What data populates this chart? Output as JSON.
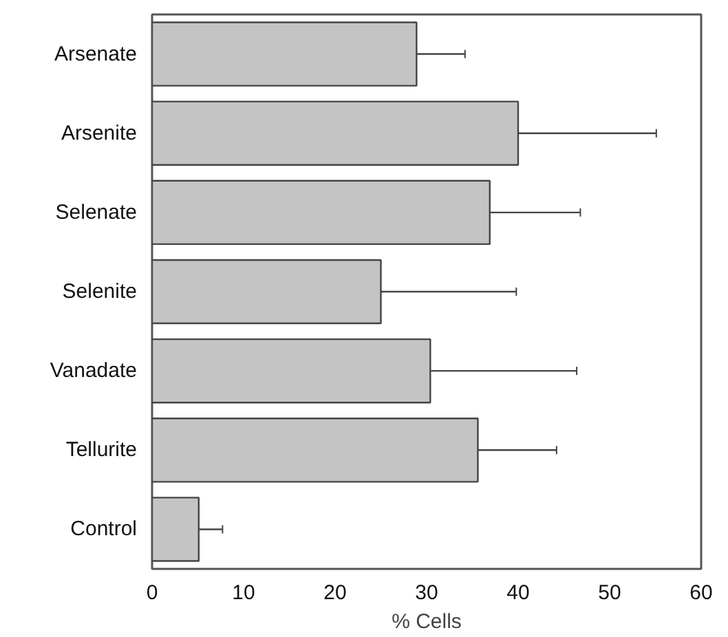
{
  "chart_data": {
    "type": "bar",
    "orientation": "horizontal",
    "xlabel": "% Cells",
    "categories": [
      "Arsenate",
      "Arsenite",
      "Selenate",
      "Selenite",
      "Vanadate",
      "Tellurite",
      "Control"
    ],
    "values": [
      28.9,
      40.0,
      36.9,
      25.0,
      30.4,
      35.6,
      5.1
    ],
    "errors": [
      [
        28.9,
        34.2
      ],
      [
        40.0,
        55.1
      ],
      [
        36.9,
        46.8
      ],
      [
        25.0,
        39.8
      ],
      [
        30.4,
        46.4
      ],
      [
        35.6,
        44.2
      ],
      [
        5.1,
        7.7
      ]
    ],
    "color": "#c4c4c4",
    "xlim": [
      0,
      60
    ],
    "xticks": [
      0,
      10,
      20,
      30,
      40,
      50,
      60
    ],
    "grid": false
  }
}
